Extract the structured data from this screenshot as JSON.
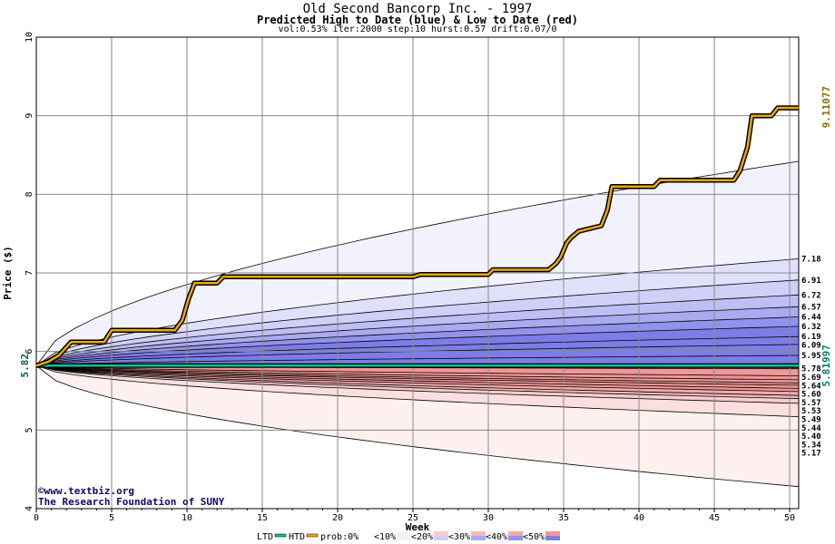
{
  "title": "Old Second Bancorp Inc. - 1997",
  "subtitle": "Predicted High to Date (blue) &  Low to Date (red)",
  "params": "vol:0.53% iter:2000 step:10 hurst:0.57 drift:0.07/0",
  "credits": [
    "www.textbiz.org",
    "The Research Foundation of SUNY"
  ],
  "colors": {
    "htd": "#f0a800",
    "ltd": "#00c890",
    "blue_bands": [
      "#f2f2fd",
      "#e0e0fa",
      "#cfcff7",
      "#bebef5",
      "#aaaaf1",
      "#9292ec",
      "#7d7de8"
    ],
    "red_bands": [
      "#fdf0ef",
      "#fbdede",
      "#f8cccc",
      "#f6baba",
      "#f4a8a8",
      "#f29696"
    ]
  },
  "chart_data": {
    "type": "area",
    "xlabel": "Week",
    "ylabel": "Price ($)",
    "xlim": [
      0,
      50.6
    ],
    "ylim": [
      4,
      10
    ],
    "x_ticks": [
      0,
      5,
      10,
      15,
      20,
      25,
      30,
      35,
      40,
      45,
      50
    ],
    "y_ticks": [
      4,
      5,
      6,
      7,
      8,
      9,
      10
    ],
    "start_price": 5.82,
    "start_label": "5.82",
    "htd_final": 9.11077,
    "htd_final_label": "9.11077",
    "ltd_final": 5.81997,
    "ltd_final_label": "5.81997",
    "band_end_values": [
      8.42,
      7.18,
      6.91,
      6.72,
      6.57,
      6.44,
      6.32,
      6.19,
      6.09,
      5.95,
      5.78,
      5.69,
      5.64,
      5.6,
      5.57,
      5.53,
      5.49,
      5.44,
      5.4,
      5.34,
      5.17,
      4.28
    ],
    "band_end_labels": [
      "7.18",
      "6.91",
      "6.72",
      "6.57",
      "6.44",
      "6.32",
      "6.19",
      "6.09",
      "5.95",
      "5.78",
      "5.69",
      "5.64",
      "5.60",
      "5.57",
      "5.53",
      "5.49",
      "5.44",
      "5.40",
      "5.34",
      "5.17"
    ],
    "htd_series": {
      "x": [
        0,
        0.8,
        1.5,
        2.3,
        4.5,
        5,
        9.2,
        9.7,
        10.1,
        10.5,
        12,
        12.4,
        25,
        25.5,
        30,
        30.3,
        34,
        34.5,
        34.8,
        35.2,
        35.5,
        36,
        37.5,
        37.9,
        38.2,
        41,
        41.4,
        46.3,
        46.7,
        47.2,
        47.5,
        48.8,
        49.2,
        50.6
      ],
      "y": [
        5.82,
        5.87,
        5.95,
        6.12,
        6.12,
        6.27,
        6.27,
        6.4,
        6.67,
        6.87,
        6.87,
        6.95,
        6.95,
        6.98,
        6.98,
        7.04,
        7.04,
        7.12,
        7.2,
        7.38,
        7.45,
        7.53,
        7.6,
        7.8,
        8.1,
        8.1,
        8.18,
        8.18,
        8.3,
        8.6,
        9.0,
        9.0,
        9.1,
        9.1
      ]
    },
    "ltd_series": {
      "x": [
        0,
        50.6
      ],
      "y": [
        5.82,
        5.82
      ]
    },
    "legend": {
      "ltd": "LTD",
      "htd": "HTD",
      "prob_items": [
        "prob:0%",
        "<10%",
        "<20%",
        "<30%",
        "<40%",
        "<50%"
      ]
    }
  }
}
